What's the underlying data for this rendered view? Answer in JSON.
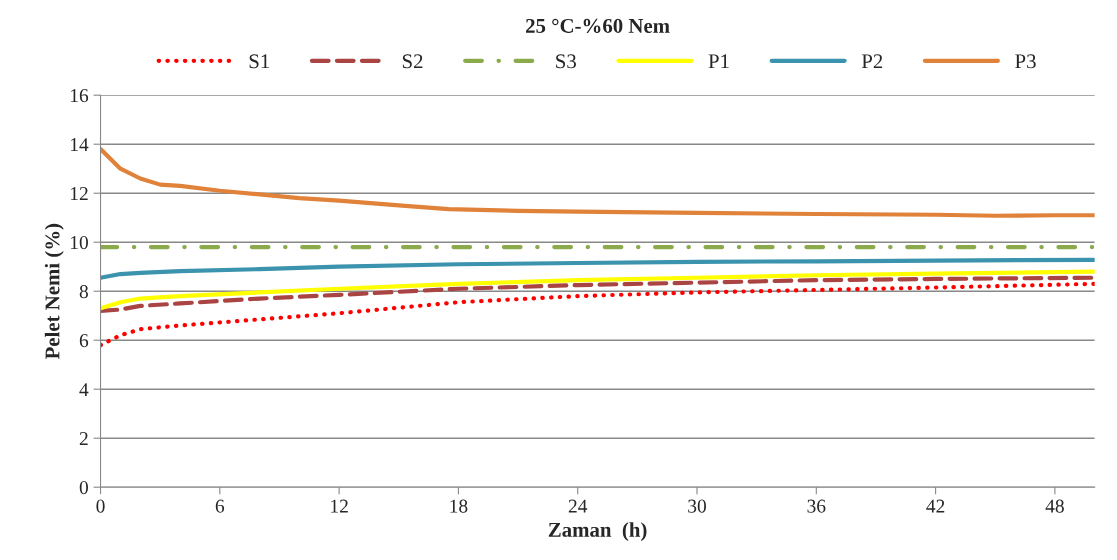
{
  "chart_data": {
    "type": "line",
    "title": "25 °C-%60 Nem",
    "xlabel": "Zaman  (h)",
    "ylabel": "Pelet Nemi (%)",
    "xlim": [
      0,
      50
    ],
    "xticks": [
      0,
      6,
      12,
      18,
      24,
      30,
      36,
      42,
      48
    ],
    "ylim": [
      0,
      16
    ],
    "yticks": [
      0,
      2,
      4,
      6,
      8,
      10,
      12,
      14,
      16
    ],
    "grid": "y",
    "legend": "top",
    "series": [
      {
        "name": "S1",
        "color": "#ff0000",
        "line_style": "dotted",
        "x": [
          0,
          1,
          2,
          4,
          8,
          12,
          18,
          24,
          30,
          36,
          42,
          50
        ],
        "values": [
          5.8,
          6.2,
          6.45,
          6.6,
          6.85,
          7.1,
          7.55,
          7.8,
          7.95,
          8.05,
          8.15,
          8.3
        ]
      },
      {
        "name": "S2",
        "color": "#a94442",
        "line_style": "dashed",
        "x": [
          0,
          1,
          2,
          4,
          8,
          12,
          18,
          24,
          30,
          36,
          42,
          50
        ],
        "values": [
          7.2,
          7.25,
          7.4,
          7.5,
          7.7,
          7.85,
          8.1,
          8.25,
          8.35,
          8.45,
          8.5,
          8.55
        ]
      },
      {
        "name": "S3",
        "color": "#8aaa4b",
        "line_style": "dashdot",
        "x": [
          0,
          50
        ],
        "values": [
          9.8,
          9.8
        ]
      },
      {
        "name": "P1",
        "color": "#ffff00",
        "line_style": "solid",
        "x": [
          0,
          1,
          2,
          4,
          8,
          12,
          18,
          24,
          30,
          36,
          42,
          50
        ],
        "values": [
          7.3,
          7.55,
          7.7,
          7.8,
          7.95,
          8.1,
          8.3,
          8.45,
          8.55,
          8.65,
          8.72,
          8.8
        ]
      },
      {
        "name": "P2",
        "color": "#3b93ad",
        "line_style": "solid",
        "x": [
          0,
          1,
          2,
          4,
          8,
          12,
          18,
          24,
          30,
          36,
          42,
          50
        ],
        "values": [
          8.55,
          8.7,
          8.75,
          8.82,
          8.9,
          9.0,
          9.1,
          9.15,
          9.2,
          9.22,
          9.25,
          9.28
        ]
      },
      {
        "name": "P3",
        "color": "#e0823a",
        "line_style": "solid",
        "x": [
          0,
          1,
          2,
          3,
          4,
          6,
          8,
          10,
          12,
          15,
          17.5,
          21,
          24,
          30,
          36,
          42,
          45,
          48,
          50
        ],
        "values": [
          13.8,
          13.0,
          12.6,
          12.35,
          12.3,
          12.1,
          11.95,
          11.8,
          11.7,
          11.5,
          11.35,
          11.28,
          11.25,
          11.2,
          11.15,
          11.12,
          11.08,
          11.1,
          11.1
        ]
      }
    ]
  }
}
